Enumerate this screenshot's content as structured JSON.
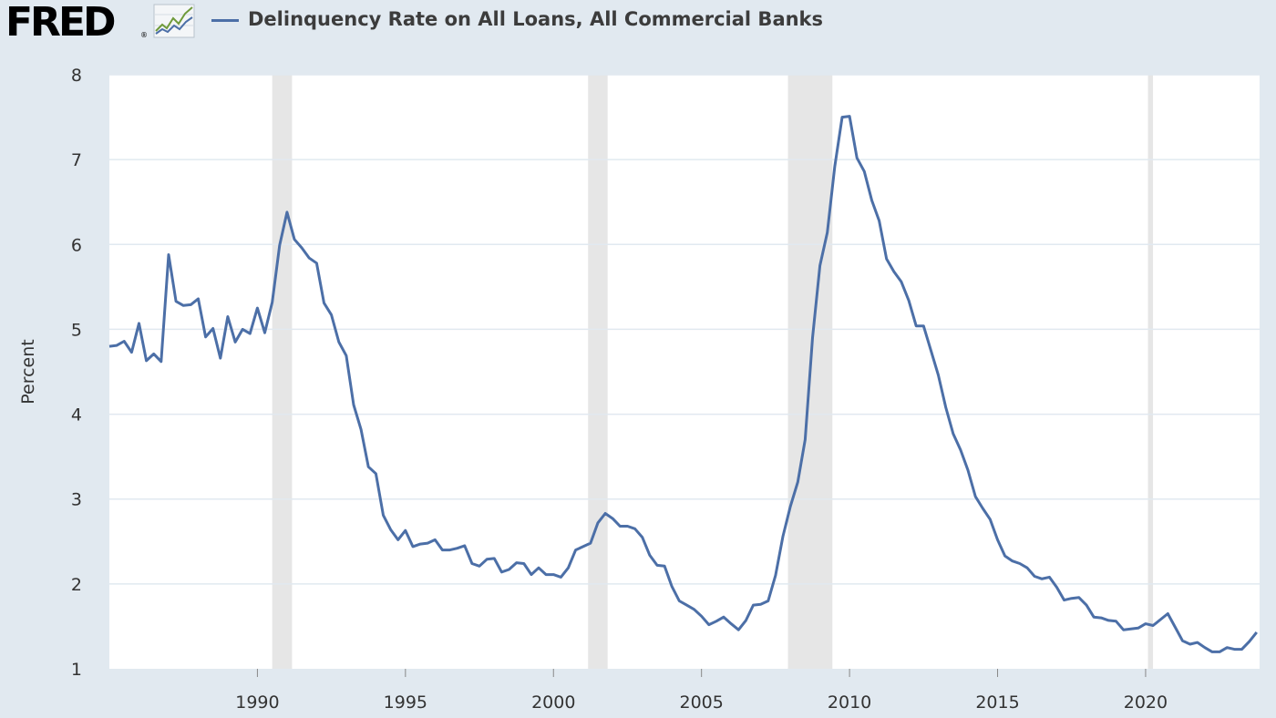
{
  "header": {
    "logo_text": "FRED",
    "logo_registered": "®",
    "legend_label": "Delinquency Rate on All Loans, All Commercial Banks"
  },
  "colors": {
    "page_background": "#e1e9f0",
    "plot_background": "#ffffff",
    "series_line": "#4c6fa7",
    "recession_shading": "#e6e6e6",
    "gridline": "#e1e9f0"
  },
  "icons": {
    "logo_graph": "line-chart-icon"
  },
  "chart_data": {
    "type": "line",
    "title": "",
    "xlabel": "",
    "ylabel": "Percent",
    "ylim": [
      1,
      8
    ],
    "xlim": [
      1985.0,
      2023.85
    ],
    "y_ticks": [
      1,
      2,
      3,
      4,
      5,
      6,
      7,
      8
    ],
    "x_ticks": [
      1990,
      1995,
      2000,
      2005,
      2010,
      2015,
      2020
    ],
    "grid": true,
    "legend": "top",
    "recessions": [
      [
        1990.5,
        1991.17
      ],
      [
        2001.17,
        2001.83
      ],
      [
        2007.92,
        2009.42
      ],
      [
        2020.08,
        2020.25
      ]
    ],
    "series": [
      {
        "name": "Delinquency Rate on All Loans, All Commercial Banks",
        "x": [
          1985.0,
          1985.25,
          1985.5,
          1985.75,
          1986.0,
          1986.25,
          1986.5,
          1986.75,
          1987.0,
          1987.25,
          1987.5,
          1987.75,
          1988.0,
          1988.25,
          1988.5,
          1988.75,
          1989.0,
          1989.25,
          1989.5,
          1989.75,
          1990.0,
          1990.25,
          1990.5,
          1990.75,
          1991.0,
          1991.25,
          1991.5,
          1991.75,
          1992.0,
          1992.25,
          1992.5,
          1992.75,
          1993.0,
          1993.25,
          1993.5,
          1993.75,
          1994.0,
          1994.25,
          1994.5,
          1994.75,
          1995.0,
          1995.25,
          1995.5,
          1995.75,
          1996.0,
          1996.25,
          1996.5,
          1996.75,
          1997.0,
          1997.25,
          1997.5,
          1997.75,
          1998.0,
          1998.25,
          1998.5,
          1998.75,
          1999.0,
          1999.25,
          1999.5,
          1999.75,
          2000.0,
          2000.25,
          2000.5,
          2000.75,
          2001.0,
          2001.25,
          2001.5,
          2001.75,
          2002.0,
          2002.25,
          2002.5,
          2002.75,
          2003.0,
          2003.25,
          2003.5,
          2003.75,
          2004.0,
          2004.25,
          2004.5,
          2004.75,
          2005.0,
          2005.25,
          2005.5,
          2005.75,
          2006.0,
          2006.25,
          2006.5,
          2006.75,
          2007.0,
          2007.25,
          2007.5,
          2007.75,
          2008.0,
          2008.25,
          2008.5,
          2008.75,
          2009.0,
          2009.25,
          2009.5,
          2009.75,
          2010.0,
          2010.25,
          2010.5,
          2010.75,
          2011.0,
          2011.25,
          2011.5,
          2011.75,
          2012.0,
          2012.25,
          2012.5,
          2012.75,
          2013.0,
          2013.25,
          2013.5,
          2013.75,
          2014.0,
          2014.25,
          2014.5,
          2014.75,
          2015.0,
          2015.25,
          2015.5,
          2015.75,
          2016.0,
          2016.25,
          2016.5,
          2016.75,
          2017.0,
          2017.25,
          2017.5,
          2017.75,
          2018.0,
          2018.25,
          2018.5,
          2018.75,
          2019.0,
          2019.25,
          2019.5,
          2019.75,
          2020.0,
          2020.25,
          2020.5,
          2020.75,
          2021.0,
          2021.25,
          2021.5,
          2021.75,
          2022.0,
          2022.25,
          2022.5,
          2022.75,
          2023.0,
          2023.25,
          2023.5,
          2023.75
        ],
        "values": [
          4.8,
          4.81,
          4.86,
          4.73,
          5.07,
          4.63,
          4.71,
          4.62,
          5.88,
          5.33,
          5.28,
          5.29,
          5.36,
          4.91,
          5.01,
          4.66,
          5.15,
          4.85,
          5.0,
          4.95,
          5.25,
          4.96,
          5.32,
          5.99,
          6.38,
          6.06,
          5.96,
          5.84,
          5.78,
          5.31,
          5.17,
          4.85,
          4.69,
          4.11,
          3.82,
          3.38,
          3.3,
          2.81,
          2.64,
          2.52,
          2.63,
          2.44,
          2.47,
          2.48,
          2.52,
          2.4,
          2.4,
          2.42,
          2.45,
          2.24,
          2.21,
          2.29,
          2.3,
          2.14,
          2.17,
          2.25,
          2.24,
          2.11,
          2.19,
          2.11,
          2.11,
          2.08,
          2.19,
          2.4,
          2.44,
          2.48,
          2.72,
          2.83,
          2.77,
          2.68,
          2.68,
          2.65,
          2.55,
          2.34,
          2.22,
          2.21,
          1.97,
          1.8,
          1.75,
          1.7,
          1.62,
          1.52,
          1.56,
          1.61,
          1.53,
          1.46,
          1.57,
          1.75,
          1.76,
          1.8,
          2.1,
          2.56,
          2.91,
          3.2,
          3.7,
          4.9,
          5.75,
          6.14,
          6.92,
          7.5,
          7.51,
          7.02,
          6.86,
          6.52,
          6.28,
          5.83,
          5.68,
          5.56,
          5.34,
          5.04,
          5.04,
          4.75,
          4.46,
          4.08,
          3.77,
          3.58,
          3.34,
          3.03,
          2.89,
          2.76,
          2.52,
          2.33,
          2.27,
          2.24,
          2.19,
          2.09,
          2.06,
          2.08,
          1.96,
          1.81,
          1.83,
          1.84,
          1.75,
          1.61,
          1.6,
          1.57,
          1.56,
          1.46,
          1.47,
          1.48,
          1.53,
          1.51,
          1.58,
          1.65,
          1.49,
          1.33,
          1.29,
          1.31,
          1.25,
          1.2,
          1.2,
          1.25,
          1.23,
          1.23,
          1.32,
          1.43
        ]
      }
    ]
  }
}
